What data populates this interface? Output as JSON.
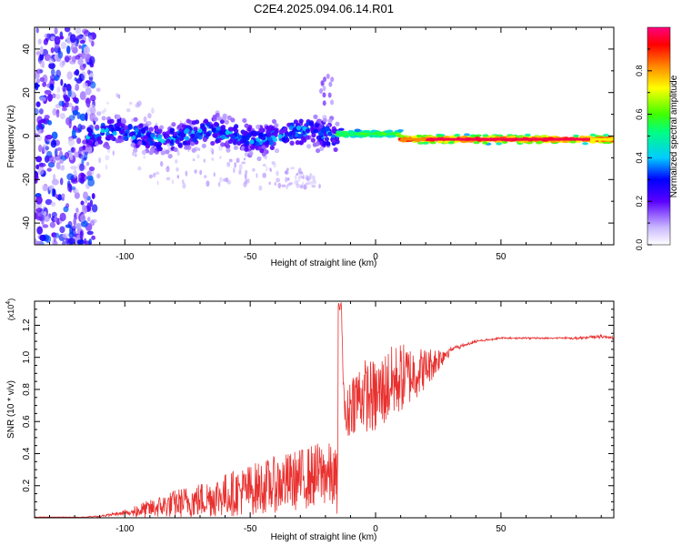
{
  "figure_title": "C2E4.2025.094.06.14.R01",
  "chart_data": [
    {
      "type": "heatmap",
      "title": "C2E4.2025.094.06.14.R01",
      "xlabel": "Height of straight line (km)",
      "ylabel": "Frequency (Hz)",
      "xlim": [
        -136,
        95
      ],
      "ylim": [
        -50,
        50
      ],
      "x_ticks": [
        -100,
        -50,
        0,
        50
      ],
      "x_tick_labels": [
        "-100",
        "-50",
        "0",
        "50"
      ],
      "y_ticks": [
        -40,
        -20,
        0,
        20,
        40
      ],
      "y_tick_labels": [
        "-40",
        "-20",
        "0",
        "20",
        "40"
      ],
      "colorbar": {
        "label": "Normalized spectral amplitude",
        "range": [
          0,
          1
        ],
        "ticks": [
          0.0,
          0.2,
          0.4,
          0.6,
          0.8
        ],
        "tick_labels": [
          "0.0",
          "0.2",
          "0.4",
          "0.6",
          "0.8"
        ]
      },
      "ridge_segments": [
        {
          "x_range": [
            -115,
            -15
          ],
          "frequency_hz": 0.5,
          "spread_hz": 4,
          "peak_amplitude": 0.35
        },
        {
          "x_range": [
            -15,
            10
          ],
          "frequency_hz": 1.0,
          "spread_hz": 1.5,
          "peak_amplitude": 0.65
        },
        {
          "x_range": [
            10,
            95
          ],
          "frequency_hz": -1.5,
          "spread_hz": 1.5,
          "peak_amplitude": 1.0
        }
      ],
      "broadband_noise_region": {
        "x_range": [
          -136,
          -112
        ],
        "frequency_range": [
          -50,
          50
        ],
        "amplitude": 0.25
      }
    },
    {
      "type": "line",
      "xlabel": "Height of straight line (km)",
      "ylabel": "SNR (10 * v/v)",
      "y_scale_label": "(x10",
      "y_scale_exponent": "4",
      "y_scale_suffix": ")",
      "xlim": [
        -136,
        95
      ],
      "ylim": [
        0,
        1.35
      ],
      "x_ticks": [
        -100,
        -50,
        0,
        50
      ],
      "x_tick_labels": [
        "-100",
        "-50",
        "0",
        "50"
      ],
      "y_ticks": [
        0.2,
        0.4,
        0.6,
        0.8,
        1.0,
        1.2
      ],
      "y_tick_labels": [
        "0.2",
        "0.4",
        "0.6",
        "0.8",
        "1.0",
        "1.2"
      ],
      "series": [
        {
          "name": "SNR",
          "color": "#e8302e",
          "x": [
            -136,
            -120,
            -110,
            -100,
            -90,
            -80,
            -70,
            -60,
            -50,
            -40,
            -30,
            -20,
            -15,
            -14,
            -12,
            -10,
            -5,
            0,
            5,
            10,
            15,
            20,
            25,
            30,
            40,
            50,
            60,
            70,
            80,
            90,
            95
          ],
          "y": [
            0.0,
            0.0,
            0.01,
            0.03,
            0.05,
            0.08,
            0.1,
            0.13,
            0.16,
            0.19,
            0.22,
            0.26,
            0.2,
            1.35,
            0.55,
            0.7,
            0.75,
            0.72,
            0.8,
            0.85,
            0.88,
            0.92,
            0.98,
            1.05,
            1.1,
            1.12,
            1.12,
            1.12,
            1.12,
            1.13,
            1.12
          ],
          "noise_amplitude": [
            0.0,
            0.005,
            0.015,
            0.04,
            0.07,
            0.11,
            0.14,
            0.17,
            0.2,
            0.22,
            0.24,
            0.26,
            0.25,
            0.0,
            0.2,
            0.25,
            0.28,
            0.3,
            0.3,
            0.28,
            0.22,
            0.16,
            0.1,
            0.04,
            0.02,
            0.015,
            0.015,
            0.015,
            0.02,
            0.025,
            0.03
          ]
        }
      ]
    }
  ],
  "colors": {
    "axis": "#000000",
    "snr_line": "#e8302e"
  }
}
